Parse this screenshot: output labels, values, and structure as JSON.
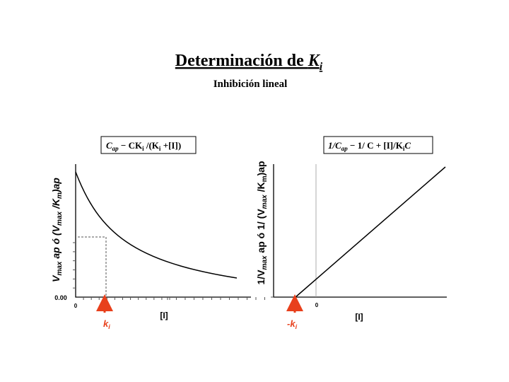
{
  "header": {
    "title": [
      "Determinación de ",
      "K",
      "i"
    ],
    "subtitle": "Inhibición lineal"
  },
  "left_panel": {
    "formula": [
      "C",
      "ap",
      " − CK",
      "i",
      " /(K",
      "i",
      " +[I])"
    ],
    "y_label": [
      "V",
      "max",
      " ap ó (V",
      "max",
      " /K",
      "m",
      ")ap"
    ],
    "y_tick": "0.00",
    "x_tick": "0",
    "x_label": "[I]",
    "marker": [
      "k",
      "i"
    ]
  },
  "right_panel": {
    "formula": [
      "1/C",
      "ap",
      " − 1/ C + [I]/K",
      "i",
      "C"
    ],
    "y_label": [
      "1/V",
      "max",
      " ap ó 1/ (V",
      "max",
      " /K",
      "m",
      ")ap"
    ],
    "x_tick": "0",
    "x_label": "[I]",
    "marker": [
      "-k",
      "i"
    ]
  }
}
